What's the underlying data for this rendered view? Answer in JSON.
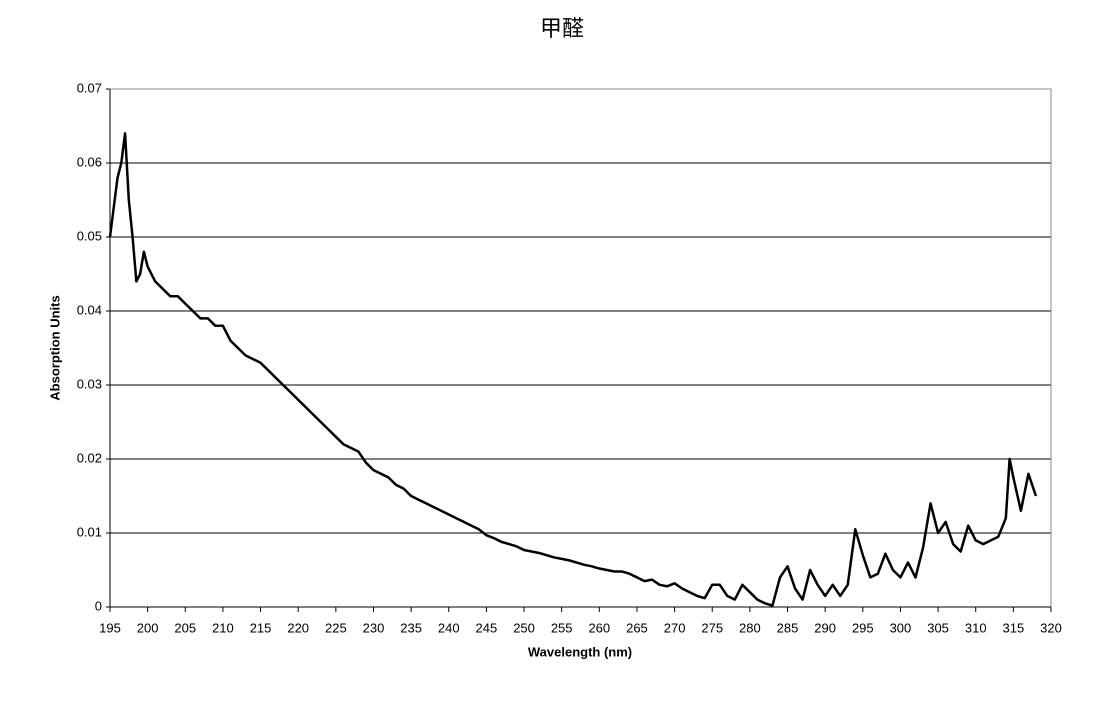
{
  "chart_data": {
    "type": "line",
    "title": "甲醛",
    "x_label": "Wavelength (nm)",
    "y_label": "Absorption Units",
    "x": [
      195,
      195.5,
      196,
      196.5,
      197,
      197.5,
      198,
      198.5,
      199,
      199.5,
      200,
      201,
      202,
      203,
      204,
      205,
      206,
      207,
      208,
      209,
      210,
      211,
      212,
      213,
      214,
      215,
      216,
      217,
      218,
      219,
      220,
      221,
      222,
      223,
      224,
      225,
      226,
      227,
      228,
      229,
      230,
      231,
      232,
      233,
      234,
      235,
      236,
      237,
      238,
      239,
      240,
      241,
      242,
      243,
      244,
      245,
      246,
      247,
      248,
      249,
      250,
      251,
      252,
      253,
      254,
      255,
      256,
      257,
      258,
      259,
      260,
      261,
      262,
      263,
      264,
      265,
      266,
      267,
      268,
      269,
      270,
      271,
      272,
      273,
      274,
      275,
      276,
      277,
      278,
      279,
      280,
      281,
      282,
      283,
      284,
      285,
      286,
      287,
      288,
      289,
      290,
      291,
      292,
      293,
      294,
      295,
      296,
      297,
      298,
      299,
      300,
      301,
      302,
      303,
      304,
      305,
      306,
      307,
      308,
      309,
      310,
      311,
      312,
      313,
      314,
      314.5,
      315,
      316,
      317,
      318
    ],
    "values": [
      0.05,
      0.054,
      0.058,
      0.06,
      0.064,
      0.055,
      0.05,
      0.044,
      0.045,
      0.048,
      0.046,
      0.044,
      0.043,
      0.042,
      0.042,
      0.041,
      0.04,
      0.039,
      0.039,
      0.038,
      0.038,
      0.036,
      0.035,
      0.034,
      0.0335,
      0.033,
      0.032,
      0.031,
      0.03,
      0.029,
      0.028,
      0.027,
      0.026,
      0.025,
      0.024,
      0.023,
      0.022,
      0.0215,
      0.021,
      0.0195,
      0.0185,
      0.018,
      0.0175,
      0.0165,
      0.016,
      0.015,
      0.0145,
      0.014,
      0.0135,
      0.013,
      0.0125,
      0.012,
      0.0115,
      0.011,
      0.0105,
      0.0097,
      0.0093,
      0.0088,
      0.0085,
      0.0082,
      0.0077,
      0.0075,
      0.0073,
      0.007,
      0.0067,
      0.0065,
      0.0063,
      0.006,
      0.0057,
      0.0055,
      0.0052,
      0.005,
      0.0048,
      0.0048,
      0.0045,
      0.004,
      0.0035,
      0.0037,
      0.003,
      0.0028,
      0.0032,
      0.0025,
      0.002,
      0.0015,
      0.0012,
      0.003,
      0.003,
      0.0015,
      0.001,
      0.003,
      0.002,
      0.001,
      0.0005,
      0.0002,
      0.004,
      0.0055,
      0.0025,
      0.001,
      0.005,
      0.003,
      0.0015,
      0.003,
      0.0015,
      0.003,
      0.0105,
      0.007,
      0.004,
      0.0045,
      0.0072,
      0.005,
      0.004,
      0.006,
      0.004,
      0.008,
      0.014,
      0.01,
      0.0115,
      0.0085,
      0.0075,
      0.011,
      0.009,
      0.0085,
      0.009,
      0.0095,
      0.012,
      0.02,
      0.0175,
      0.013,
      0.018,
      0.015
    ],
    "color": "#000000",
    "xlim": [
      195,
      320
    ],
    "xticks": [
      195,
      200,
      205,
      210,
      215,
      220,
      225,
      230,
      235,
      240,
      245,
      250,
      255,
      260,
      265,
      270,
      275,
      280,
      285,
      290,
      295,
      300,
      305,
      310,
      315,
      320
    ],
    "ylim": [
      0,
      0.07
    ],
    "yticks": [
      0,
      0.01,
      0.02,
      0.03,
      0.04,
      0.05,
      0.06,
      0.07
    ],
    "grid": true
  }
}
